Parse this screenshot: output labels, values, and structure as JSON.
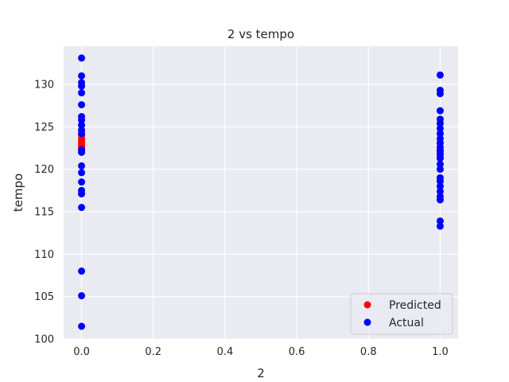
{
  "chart_data": {
    "type": "scatter",
    "title": "2 vs tempo",
    "xlabel": "2",
    "ylabel": "tempo",
    "xlim": [
      -0.05,
      1.05
    ],
    "ylim": [
      100,
      134.5
    ],
    "xticks": [
      0.0,
      0.2,
      0.4,
      0.6,
      0.8,
      1.0
    ],
    "xtick_labels": [
      "0.0",
      "0.2",
      "0.4",
      "0.6",
      "0.8",
      "1.0"
    ],
    "yticks": [
      100,
      105,
      110,
      115,
      120,
      125,
      130
    ],
    "ytick_labels": [
      "100",
      "105",
      "110",
      "115",
      "120",
      "125",
      "130"
    ],
    "grid": true,
    "legend_position": "bottom-right",
    "series": [
      {
        "name": "Predicted",
        "color": "#ff0000",
        "points": [
          [
            0,
            122.0
          ],
          [
            0,
            122.4
          ],
          [
            0,
            122.7
          ],
          [
            0,
            123.0
          ],
          [
            0,
            123.3
          ],
          [
            0,
            123.6
          ],
          [
            0,
            124.0
          ],
          [
            1,
            121.3
          ],
          [
            1,
            121.6
          ],
          [
            1,
            121.9
          ],
          [
            1,
            122.2
          ]
        ]
      },
      {
        "name": "Actual",
        "color": "#0000ff",
        "points": [
          [
            0,
            133.1
          ],
          [
            0,
            131.0
          ],
          [
            0,
            130.2
          ],
          [
            0,
            129.8
          ],
          [
            0,
            129.0
          ],
          [
            0,
            127.6
          ],
          [
            0,
            126.2
          ],
          [
            0,
            125.8
          ],
          [
            0,
            125.2
          ],
          [
            0,
            124.6
          ],
          [
            0,
            124.2
          ],
          [
            0,
            122.3
          ],
          [
            0,
            122.0
          ],
          [
            0,
            120.4
          ],
          [
            0,
            119.6
          ],
          [
            0,
            118.5
          ],
          [
            0,
            117.5
          ],
          [
            0,
            117.1
          ],
          [
            0,
            115.5
          ],
          [
            0,
            108.0
          ],
          [
            0,
            105.1
          ],
          [
            0,
            101.5
          ],
          [
            1,
            131.1
          ],
          [
            1,
            129.3
          ],
          [
            1,
            128.9
          ],
          [
            1,
            126.9
          ],
          [
            1,
            125.9
          ],
          [
            1,
            125.4
          ],
          [
            1,
            124.8
          ],
          [
            1,
            124.2
          ],
          [
            1,
            123.6
          ],
          [
            1,
            123.1
          ],
          [
            1,
            122.6
          ],
          [
            1,
            122.2
          ],
          [
            1,
            121.8
          ],
          [
            1,
            121.3
          ],
          [
            1,
            120.6
          ],
          [
            1,
            120.0
          ],
          [
            1,
            119.0
          ],
          [
            1,
            118.6
          ],
          [
            1,
            118.0
          ],
          [
            1,
            117.4
          ],
          [
            1,
            116.8
          ],
          [
            1,
            116.4
          ],
          [
            1,
            113.9
          ],
          [
            1,
            113.3
          ]
        ]
      }
    ]
  }
}
